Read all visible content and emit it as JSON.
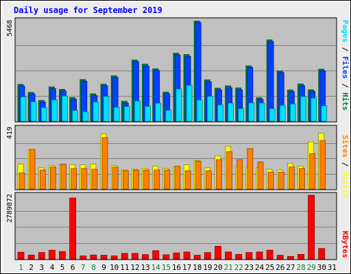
{
  "chart_data": [
    {
      "type": "bar",
      "title": "Daily usage for September 2019",
      "panel": "top",
      "ymax_label": "5468",
      "ylim": [
        0,
        5468
      ],
      "categories": [
        "1",
        "2",
        "3",
        "4",
        "5",
        "6",
        "7",
        "8",
        "9",
        "10",
        "11",
        "12",
        "13",
        "14",
        "15",
        "16",
        "17",
        "18",
        "19",
        "20",
        "21",
        "22",
        "23",
        "24",
        "25",
        "26",
        "27",
        "28",
        "29",
        "30",
        "31"
      ],
      "series": [
        {
          "name": "Hits",
          "color": "#008040",
          "values": [
            1990,
            1560,
            1120,
            1850,
            1720,
            1280,
            2250,
            1480,
            2000,
            2450,
            1080,
            3300,
            3080,
            2830,
            1570,
            3670,
            3600,
            5400,
            2230,
            1780,
            1910,
            1800,
            2990,
            1270,
            4390,
            2720,
            1690,
            2010,
            1700,
            2810,
            0
          ]
        },
        {
          "name": "Files",
          "color": "#0040ff",
          "values": [
            1900,
            1470,
            1040,
            1760,
            1630,
            1190,
            2160,
            1380,
            1920,
            2360,
            980,
            3210,
            2980,
            2740,
            1480,
            3580,
            3500,
            5330,
            2140,
            1690,
            1810,
            1700,
            2900,
            1180,
            4300,
            2630,
            1600,
            1920,
            1620,
            2720,
            0
          ]
        },
        {
          "name": "Pages",
          "color": "#00e0ff",
          "values": [
            1310,
            1050,
            730,
            1150,
            1360,
            580,
            510,
            1040,
            1340,
            750,
            790,
            1090,
            800,
            970,
            590,
            1740,
            1940,
            1150,
            1340,
            880,
            980,
            680,
            990,
            980,
            680,
            850,
            930,
            1330,
            1240,
            830,
            0
          ]
        }
      ]
    },
    {
      "type": "bar",
      "panel": "middle",
      "ymax_label": "419",
      "ylim": [
        0,
        419
      ],
      "categories": [
        "1",
        "2",
        "3",
        "4",
        "5",
        "6",
        "7",
        "8",
        "9",
        "10",
        "11",
        "12",
        "13",
        "14",
        "15",
        "16",
        "17",
        "18",
        "19",
        "20",
        "21",
        "22",
        "23",
        "24",
        "25",
        "26",
        "27",
        "28",
        "29",
        "30",
        "31"
      ],
      "series": [
        {
          "name": "Visits",
          "color": "#ffff00",
          "values": [
            170,
            265,
            145,
            160,
            165,
            165,
            165,
            170,
            375,
            160,
            130,
            135,
            140,
            155,
            140,
            150,
            165,
            195,
            145,
            225,
            290,
            155,
            150,
            145,
            135,
            130,
            175,
            155,
            320,
            380,
            0
          ]
        },
        {
          "name": "Sites",
          "color": "#ff8000",
          "values": [
            110,
            270,
            130,
            150,
            170,
            140,
            140,
            135,
            350,
            150,
            125,
            130,
            130,
            130,
            130,
            155,
            125,
            190,
            125,
            200,
            255,
            200,
            275,
            185,
            115,
            115,
            150,
            140,
            240,
            330,
            0
          ]
        }
      ]
    },
    {
      "type": "bar",
      "panel": "bottom",
      "ymax_label": "2789872",
      "ylim": [
        0,
        2789872
      ],
      "categories": [
        "1",
        "2",
        "3",
        "4",
        "5",
        "6",
        "7",
        "8",
        "9",
        "10",
        "11",
        "12",
        "13",
        "14",
        "15",
        "16",
        "17",
        "18",
        "19",
        "20",
        "21",
        "22",
        "23",
        "24",
        "25",
        "26",
        "27",
        "28",
        "29",
        "30",
        "31"
      ],
      "series": [
        {
          "name": "KBytes",
          "color": "#ff0000",
          "values": [
            290000,
            170000,
            280000,
            380000,
            320000,
            2640000,
            130000,
            170000,
            160000,
            130000,
            240000,
            240000,
            190000,
            360000,
            180000,
            260000,
            300000,
            160000,
            280000,
            550000,
            300000,
            200000,
            280000,
            300000,
            380000,
            160000,
            110000,
            200000,
            2760000,
            450000,
            0
          ]
        }
      ]
    }
  ],
  "legend": {
    "top": [
      {
        "text": "Pages",
        "color": "#00e0ff"
      },
      {
        "text": " / ",
        "color": "#000000"
      },
      {
        "text": "Files",
        "color": "#0040ff"
      },
      {
        "text": " / ",
        "color": "#000000"
      },
      {
        "text": "Hits",
        "color": "#008040"
      }
    ],
    "middle": [
      {
        "text": "Sites",
        "color": "#ff8000"
      },
      {
        "text": " / ",
        "color": "#000000"
      },
      {
        "text": "Visits",
        "color": "#ffff00"
      }
    ],
    "bottom": [
      {
        "text": "KBytes",
        "color": "#ff0000"
      }
    ]
  },
  "weekend_days": [
    1,
    7,
    8,
    14,
    15,
    21,
    22,
    28,
    29
  ],
  "colors": {
    "title": "#0000ff",
    "plot_bg": "#c0c0c0",
    "outer_bg": "#ececec",
    "weekday_label": "#000000",
    "weekend_label": "#008040"
  }
}
